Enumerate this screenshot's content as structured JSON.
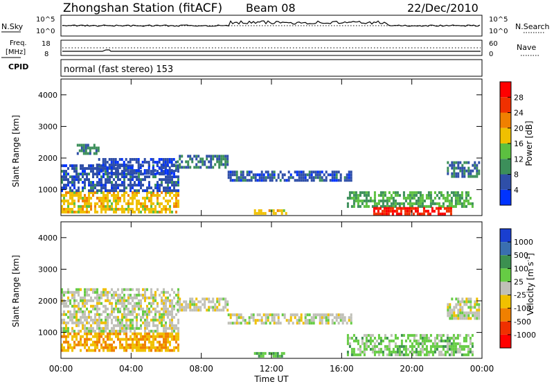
{
  "header": {
    "station": "Zhongshan Station (fitACF)",
    "beam": "Beam 08",
    "date": "22/Dec/2010"
  },
  "strip": {
    "nsky_label": "N.Sky",
    "nsky_ticks": [
      "10^5",
      "10^0"
    ],
    "nsearch_label": "N.Search",
    "nsearch_ticks": [
      "10^5",
      "10^0"
    ],
    "freq_label_1": "Freq.",
    "freq_label_2": "[MHz]",
    "freq_ticks": [
      "18",
      "8"
    ],
    "nave_label": "Nave",
    "nave_ticks": [
      "60",
      "0"
    ],
    "cpid_label": "CPID",
    "cpid_value": "normal (fast stereo) 153"
  },
  "x_axis": {
    "label": "Time UT",
    "ticks": [
      "00:00",
      "04:00",
      "08:00",
      "12:00",
      "16:00",
      "20:00",
      "00:00"
    ]
  },
  "y_axis": {
    "label": "Slant Range [km]",
    "ticks": [
      "1000",
      "2000",
      "3000",
      "4000"
    ]
  },
  "colorbars": {
    "power": {
      "label": "Power [dB]",
      "ticks": [
        "4",
        "8",
        "12",
        "16",
        "20",
        "24",
        "28"
      ],
      "colors": [
        "#0033ff",
        "#2f4fa8",
        "#3c8f5a",
        "#5cc040",
        "#f0c000",
        "#f08000",
        "#f03000",
        "#ff0000"
      ]
    },
    "velocity": {
      "label": "Velocity [m s",
      "label_sup": "-1",
      "label_end": "]",
      "ticks": [
        "1000",
        "500",
        "100",
        "25",
        "-25",
        "-100",
        "-500",
        "-1000"
      ],
      "colors": [
        "#1a3fd0",
        "#3a6fb0",
        "#3c9050",
        "#66cc44",
        "#c0c0b8",
        "#f0c000",
        "#f08000",
        "#f03000",
        "#ff0000"
      ]
    }
  },
  "chart_data": [
    {
      "type": "heatmap",
      "title": "Power [dB]",
      "xlabel": "Time UT",
      "ylabel": "Slant Range [km]",
      "xlim": [
        0,
        24
      ],
      "ylim": [
        180,
        4500
      ],
      "color_scale": [
        0,
        32
      ],
      "regions": [
        {
          "t0": 0.0,
          "t1": 6.7,
          "r0": 300,
          "r1": 950,
          "value": 18
        },
        {
          "t0": 0.0,
          "t1": 6.7,
          "r0": 1000,
          "r1": 1800,
          "value": 6
        },
        {
          "t0": 0.9,
          "t1": 2.2,
          "r0": 2100,
          "r1": 2450,
          "value": 9
        },
        {
          "t0": 2.0,
          "t1": 6.6,
          "r0": 1500,
          "r1": 2000,
          "value": 5
        },
        {
          "t0": 6.6,
          "t1": 9.5,
          "r0": 1700,
          "r1": 2100,
          "value": 8
        },
        {
          "t0": 9.5,
          "t1": 16.5,
          "r0": 1300,
          "r1": 1600,
          "value": 6
        },
        {
          "t0": 11.0,
          "t1": 12.8,
          "r0": 250,
          "r1": 380,
          "value": 18
        },
        {
          "t0": 16.3,
          "t1": 23.5,
          "r0": 500,
          "r1": 950,
          "value": 12
        },
        {
          "t0": 17.8,
          "t1": 22.2,
          "r0": 200,
          "r1": 450,
          "value": 28
        },
        {
          "t0": 22.0,
          "t1": 23.8,
          "r0": 1400,
          "r1": 1900,
          "value": 8
        }
      ]
    },
    {
      "type": "heatmap",
      "title": "Velocity [m s-1]",
      "xlabel": "Time UT",
      "ylabel": "Slant Range [km]",
      "xlim": [
        0,
        24
      ],
      "ylim": [
        180,
        4500
      ],
      "color_scale": [
        -1000,
        1000
      ],
      "regions": [
        {
          "t0": 0.0,
          "t1": 6.7,
          "r0": 400,
          "r1": 1000,
          "value": -300
        },
        {
          "t0": 0.0,
          "t1": 6.7,
          "r0": 1000,
          "r1": 2400,
          "value": 0
        },
        {
          "t0": 6.6,
          "t1": 9.5,
          "r0": 1700,
          "r1": 2100,
          "value": 0
        },
        {
          "t0": 9.5,
          "t1": 16.5,
          "r0": 1300,
          "r1": 1600,
          "value": 0
        },
        {
          "t0": 11.0,
          "t1": 12.8,
          "r0": 250,
          "r1": 380,
          "value": 300
        },
        {
          "t0": 16.3,
          "t1": 23.5,
          "r0": 250,
          "r1": 950,
          "value": 200
        },
        {
          "t0": 22.0,
          "t1": 23.8,
          "r0": 1400,
          "r1": 2100,
          "value": 0
        }
      ]
    }
  ]
}
